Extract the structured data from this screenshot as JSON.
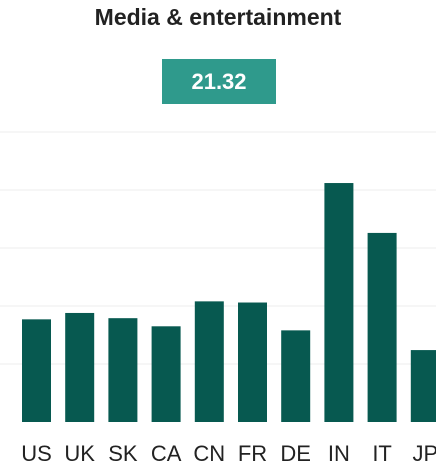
{
  "header": {
    "title": "Media & entertainment",
    "value": "21.32"
  },
  "colors": {
    "bar": "#075950",
    "badge": "#2f9a8c",
    "grid": "#ececec"
  },
  "chart_data": {
    "type": "bar",
    "title": "Media & entertainment",
    "categories": [
      "US",
      "UK",
      "SK",
      "CA",
      "CN",
      "FR",
      "DE",
      "IN",
      "IT",
      "JP"
    ],
    "values": [
      17.7,
      18.8,
      17.9,
      16.5,
      20.8,
      20.6,
      15.8,
      41.2,
      32.6,
      12.4
    ],
    "ylim": [
      0,
      50
    ],
    "grid": true
  }
}
